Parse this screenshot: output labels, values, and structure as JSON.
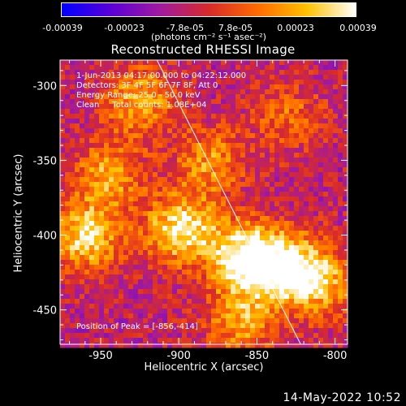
{
  "colorbar": {
    "ticks": [
      "-0.00039",
      "-0.00023",
      "-7.8e-05",
      "7.8e-05",
      "0.00023",
      "0.00039"
    ],
    "units": "(photons cm⁻² s⁻¹ asec⁻²)",
    "colors": [
      "#0000ff",
      "#5a00d8",
      "#a01aa0",
      "#d82a2a",
      "#ff6a00",
      "#ffc000",
      "#ffffff"
    ]
  },
  "chart_data": {
    "type": "heatmap",
    "title": "Reconstructed RHESSI Image",
    "xlabel": "Heliocentric X (arcsec)",
    "ylabel": "Heliocentric Y (arcsec)",
    "xlim": [
      -976,
      -792
    ],
    "ylim": [
      -473,
      -283
    ],
    "xticks": [
      "-950",
      "-900",
      "-850",
      "-800"
    ],
    "xtick_values": [
      -950,
      -900,
      -850,
      -800
    ],
    "yticks": [
      "-300",
      "-350",
      "-400",
      "-450"
    ],
    "ytick_values": [
      -300,
      -350,
      -400,
      -450
    ],
    "sources": [
      {
        "x": -898,
        "y": -395,
        "intensity": 0.85
      },
      {
        "x": -856,
        "y": -414,
        "intensity": 1.0
      },
      {
        "x": -830,
        "y": -420,
        "intensity": 0.7
      },
      {
        "x": -960,
        "y": -400,
        "intensity": 0.75
      },
      {
        "x": -925,
        "y": -310,
        "intensity": 0.6
      },
      {
        "x": -945,
        "y": -360,
        "intensity": 0.55
      },
      {
        "x": -880,
        "y": -350,
        "intensity": 0.5
      },
      {
        "x": -860,
        "y": -455,
        "intensity": 0.55
      },
      {
        "x": -810,
        "y": -430,
        "intensity": 0.6
      },
      {
        "x": -830,
        "y": -320,
        "intensity": 0.35
      }
    ],
    "limb_line": {
      "x1": -914,
      "y1": -283,
      "x2": -822,
      "y2": -473
    },
    "annotations": {
      "time_range": "1-Jun-2013 04:17:00.000 to 04:22:12.000",
      "detectors": "Detectors: 3F 4F 5F 6F 7F 8F, Att 0",
      "energy": "Energy Range: 25.0 - 50.0 keV",
      "clean": "Clean     Total counts: 1.08E+04",
      "peak": "Position of Peak = [-856,-414]"
    }
  },
  "footer": {
    "date": "14-May-2022 10:52"
  }
}
